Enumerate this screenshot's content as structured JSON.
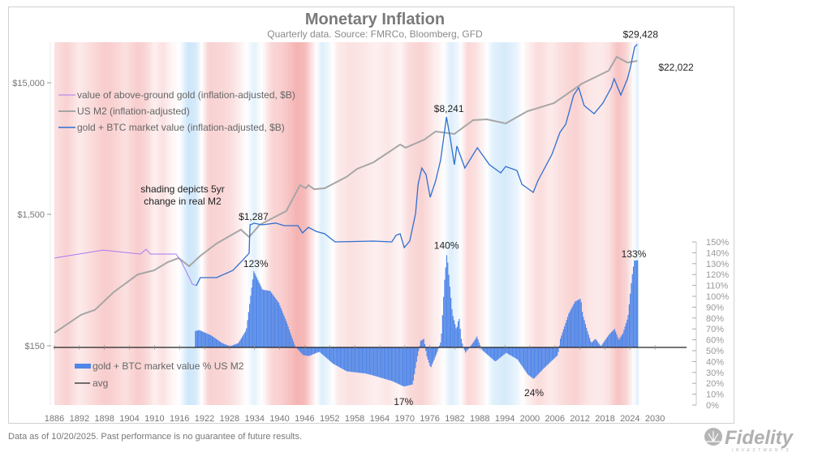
{
  "chart_data": {
    "type": "line",
    "title": "Monetary Inflation",
    "subtitle": "Quarterly data.  Source: FMRCo, Bloomberg, GFD",
    "annotation": [
      "shading depicts 5yr",
      "change in real M2"
    ],
    "x_ticks": [
      "1886",
      "1892",
      "1898",
      "1904",
      "1910",
      "1916",
      "1922",
      "1928",
      "1934",
      "1940",
      "1946",
      "1952",
      "1958",
      "1964",
      "1970",
      "1976",
      "1982",
      "1988",
      "1994",
      "2000",
      "2006",
      "2012",
      "2018",
      "2024",
      "2030"
    ],
    "xlim": [
      1886,
      2041
    ],
    "left_axis": {
      "scale": "log",
      "ticks": [
        {
          "value": 15000,
          "label": "$15,000"
        },
        {
          "value": 1500,
          "label": "$1,500"
        },
        {
          "value": 150,
          "label": "$150"
        }
      ],
      "ylim": [
        54,
        30500
      ]
    },
    "right_axis": {
      "ticks": [
        "0%",
        "10%",
        "20%",
        "30%",
        "40%",
        "50%",
        "60%",
        "70%",
        "80%",
        "90%",
        "100%",
        "110%",
        "120%",
        "130%",
        "140%",
        "150%"
      ],
      "ylim": [
        0,
        150
      ]
    },
    "colors": {
      "gold": "#a77bf0",
      "m2": "#a6a6a6",
      "gold_btc": "#2f6fd0",
      "bars": "#4f86e8",
      "avg": "#222222",
      "shade_pos": "#f29a9a",
      "shade_neg": "#a9d4f5"
    },
    "legend_top": [
      {
        "name": "value of above-ground gold (inflation-adjusted, $B)",
        "series": "gold"
      },
      {
        "name": "US M2 (inflation-adjusted)",
        "series": "m2"
      },
      {
        "name": "gold + BTC market value (inflation-adjusted, $B)",
        "series": "gold_btc"
      }
    ],
    "legend_bottom": [
      {
        "name": "gold + BTC market value % US M2",
        "series": "bars"
      },
      {
        "name": "avg",
        "series": "avg"
      }
    ],
    "series": {
      "gold": [
        [
          1886,
          697
        ],
        [
          1897.7,
          802
        ],
        [
          1906.6,
          748
        ],
        [
          1908,
          813
        ],
        [
          1909,
          748
        ],
        [
          1915.2,
          748
        ],
        [
          1916.4,
          658
        ],
        [
          1919.1,
          442
        ],
        [
          1920,
          430
        ]
      ],
      "m2": [
        [
          1886,
          188
        ],
        [
          1892.4,
          258
        ],
        [
          1895.7,
          281
        ],
        [
          1900.2,
          383
        ],
        [
          1906,
          523
        ],
        [
          1909.9,
          562
        ],
        [
          1913.2,
          649
        ],
        [
          1915.8,
          697
        ],
        [
          1918.3,
          604
        ],
        [
          1921,
          726
        ],
        [
          1924.9,
          899
        ],
        [
          1930.7,
          1146
        ],
        [
          1932.7,
          1007
        ],
        [
          1935.2,
          1247
        ],
        [
          1939.7,
          1479
        ],
        [
          1941.6,
          1588
        ],
        [
          1944.9,
          2500
        ],
        [
          1946.3,
          2366
        ],
        [
          1946.9,
          2500
        ],
        [
          1948.3,
          2328
        ],
        [
          1950.8,
          2366
        ],
        [
          1956,
          2884
        ],
        [
          1958.6,
          3327
        ],
        [
          1962.5,
          3724
        ],
        [
          1968.9,
          5093
        ],
        [
          1970.2,
          4808
        ],
        [
          1974.7,
          5546
        ],
        [
          1977.4,
          6397
        ],
        [
          1981.9,
          6124
        ],
        [
          1986.4,
          7798
        ],
        [
          1989.7,
          7907
        ],
        [
          1994.2,
          7362
        ],
        [
          1999.4,
          9120
        ],
        [
          2005.8,
          10520
        ],
        [
          2012.5,
          14790
        ],
        [
          2018.9,
          18570
        ],
        [
          2020.8,
          23650
        ],
        [
          2023.4,
          21380
        ],
        [
          2025.75,
          22022
        ]
      ],
      "gold_btc": [
        [
          1920,
          430
        ],
        [
          1921,
          495
        ],
        [
          1924.9,
          495
        ],
        [
          1928.8,
          562
        ],
        [
          1930.7,
          649
        ],
        [
          1932.7,
          759
        ],
        [
          1932.9,
          1247
        ],
        [
          1933.9,
          1283
        ],
        [
          1935.8,
          1247
        ],
        [
          1939.1,
          1287
        ],
        [
          1941.1,
          1230
        ],
        [
          1944.4,
          1230
        ],
        [
          1945.5,
          1081
        ],
        [
          1946.9,
          1194
        ],
        [
          1948.8,
          1112
        ],
        [
          1950.8,
          1067
        ],
        [
          1953.3,
          925
        ],
        [
          1962.5,
          938
        ],
        [
          1966.9,
          925
        ],
        [
          1967.9,
          1038
        ],
        [
          1968.9,
          1067
        ],
        [
          1969.9,
          838
        ],
        [
          1971.2,
          938
        ],
        [
          1972.6,
          1521
        ],
        [
          1973.2,
          2535
        ],
        [
          1974.1,
          3373
        ],
        [
          1975.1,
          3006
        ],
        [
          1976.1,
          2023
        ],
        [
          1977.4,
          2685
        ],
        [
          1978.6,
          3890
        ],
        [
          1980,
          8241
        ],
        [
          1980.9,
          5700
        ],
        [
          1981.9,
          3573
        ],
        [
          1982.5,
          4955
        ],
        [
          1984.4,
          3373
        ],
        [
          1987.4,
          4808
        ],
        [
          1990.3,
          3573
        ],
        [
          1993,
          3097
        ],
        [
          1994.2,
          3467
        ],
        [
          1996.9,
          3228
        ],
        [
          1998.1,
          2535
        ],
        [
          2000.8,
          2203
        ],
        [
          2001.9,
          2685
        ],
        [
          2005.3,
          4295
        ],
        [
          2007.2,
          6295
        ],
        [
          2008.6,
          7261
        ],
        [
          2010.5,
          12110
        ],
        [
          2011.7,
          13770
        ],
        [
          2013,
          10070
        ],
        [
          2015.4,
          8730
        ],
        [
          2017.5,
          10520
        ],
        [
          2019.5,
          13770
        ],
        [
          2020.2,
          16110
        ],
        [
          2021.8,
          12110
        ],
        [
          2023.4,
          16110
        ],
        [
          2024.1,
          19640
        ],
        [
          2025.1,
          28000
        ],
        [
          2025.75,
          29428
        ]
      ],
      "pct_of_m2": [
        [
          1919.7,
          68
        ],
        [
          1920.6,
          69
        ],
        [
          1923.5,
          64
        ],
        [
          1926.1,
          57
        ],
        [
          1928,
          54
        ],
        [
          1930,
          57
        ],
        [
          1931.9,
          69
        ],
        [
          1932.9,
          99
        ],
        [
          1933.7,
          123
        ],
        [
          1935.8,
          106
        ],
        [
          1937.6,
          105
        ],
        [
          1939.7,
          94
        ],
        [
          1941.6,
          76
        ],
        [
          1943.6,
          54
        ],
        [
          1945.5,
          46
        ],
        [
          1946.9,
          45
        ],
        [
          1949.4,
          49
        ],
        [
          1952.7,
          38
        ],
        [
          1956,
          31
        ],
        [
          1960.5,
          29
        ],
        [
          1962.5,
          27
        ],
        [
          1966.9,
          22
        ],
        [
          1969.7,
          17
        ],
        [
          1971.8,
          19
        ],
        [
          1972.8,
          42
        ],
        [
          1973.7,
          59
        ],
        [
          1974.5,
          61
        ],
        [
          1975.1,
          46
        ],
        [
          1976.1,
          34
        ],
        [
          1977.6,
          48
        ],
        [
          1978.6,
          59
        ],
        [
          1979.4,
          113
        ],
        [
          1980,
          140
        ],
        [
          1980.6,
          113
        ],
        [
          1981.3,
          84
        ],
        [
          1982.3,
          69
        ],
        [
          1982.9,
          81
        ],
        [
          1983.5,
          59
        ],
        [
          1984.4,
          48
        ],
        [
          1986.2,
          57
        ],
        [
          1987.2,
          63
        ],
        [
          1988.3,
          51
        ],
        [
          1991.6,
          40
        ],
        [
          1994.2,
          48
        ],
        [
          1996.9,
          42
        ],
        [
          1999.4,
          28
        ],
        [
          2000.8,
          24
        ],
        [
          2003.3,
          34
        ],
        [
          2006.6,
          46
        ],
        [
          2007.2,
          61
        ],
        [
          2009.2,
          84
        ],
        [
          2010.7,
          95
        ],
        [
          2012.1,
          98
        ],
        [
          2012.5,
          84
        ],
        [
          2013.6,
          69
        ],
        [
          2014.6,
          57
        ],
        [
          2015.6,
          61
        ],
        [
          2016.9,
          54
        ],
        [
          2018.9,
          65
        ],
        [
          2020.2,
          70
        ],
        [
          2021.2,
          60
        ],
        [
          2022.2,
          66
        ],
        [
          2023.4,
          81
        ],
        [
          2024.3,
          116
        ],
        [
          2024.9,
          133
        ],
        [
          2025.75,
          133
        ]
      ],
      "avg_pct": 53,
      "shading_5yr_real_m2_change": [
        [
          1886,
          0.3
        ],
        [
          1889,
          0.45
        ],
        [
          1892,
          0.2
        ],
        [
          1895,
          0.35
        ],
        [
          1898,
          0.5
        ],
        [
          1900,
          0.45
        ],
        [
          1903,
          0.3
        ],
        [
          1906,
          0.5
        ],
        [
          1908,
          0.4
        ],
        [
          1910,
          0.15
        ],
        [
          1912,
          0.3
        ],
        [
          1914,
          0.1
        ],
        [
          1916,
          0.0
        ],
        [
          1918,
          -0.35
        ],
        [
          1920,
          -0.3
        ],
        [
          1921.5,
          0.05
        ],
        [
          1923,
          0.45
        ],
        [
          1926,
          0.4
        ],
        [
          1928,
          0.35
        ],
        [
          1930,
          0.2
        ],
        [
          1932,
          0.0
        ],
        [
          1934,
          -0.2
        ],
        [
          1936,
          0.05
        ],
        [
          1938,
          0.4
        ],
        [
          1941,
          0.5
        ],
        [
          1944,
          0.75
        ],
        [
          1946,
          0.7
        ],
        [
          1948,
          0.2
        ],
        [
          1950,
          -0.25
        ],
        [
          1952,
          -0.1
        ],
        [
          1954,
          0.2
        ],
        [
          1957,
          0.3
        ],
        [
          1960,
          0.25
        ],
        [
          1963,
          0.15
        ],
        [
          1966,
          0.25
        ],
        [
          1969,
          0.1
        ],
        [
          1971,
          0.35
        ],
        [
          1974,
          0.45
        ],
        [
          1977,
          0.2
        ],
        [
          1979,
          0.05
        ],
        [
          1981,
          -0.25
        ],
        [
          1983,
          -0.1
        ],
        [
          1985,
          0.4
        ],
        [
          1987,
          0.3
        ],
        [
          1989,
          0.1
        ],
        [
          1991,
          -0.2
        ],
        [
          1994,
          -0.3
        ],
        [
          1997,
          -0.15
        ],
        [
          1999,
          0.1
        ],
        [
          2002,
          0.35
        ],
        [
          2005,
          0.2
        ],
        [
          2008,
          0.35
        ],
        [
          2011,
          0.45
        ],
        [
          2014,
          0.25
        ],
        [
          2017,
          0.2
        ],
        [
          2019,
          0.3
        ],
        [
          2021,
          0.6
        ],
        [
          2023,
          0.45
        ],
        [
          2024.5,
          0.1
        ],
        [
          2025.75,
          -0.2
        ]
      ]
    },
    "data_labels": [
      {
        "text": "$29,428",
        "series": "gold_btc",
        "x": 2025.75,
        "y": 29428
      },
      {
        "text": "$22,022",
        "series": "m2",
        "x": 2025.75,
        "y": 22022
      },
      {
        "text": "$8,241",
        "series": "gold_btc",
        "x": 1980,
        "y": 8241
      },
      {
        "text": "$1,287",
        "series": "gold_btc",
        "x": 1939,
        "y": 1287
      },
      {
        "text": "123%",
        "series": "pct_of_m2",
        "x": 1933.7,
        "y": 123
      },
      {
        "text": "140%",
        "series": "pct_of_m2",
        "x": 1980,
        "y": 140
      },
      {
        "text": "133%",
        "series": "pct_of_m2",
        "x": 2024.9,
        "y": 133
      },
      {
        "text": "17%",
        "series": "pct_of_m2",
        "x": 1969.7,
        "y": 17
      },
      {
        "text": "24%",
        "series": "pct_of_m2",
        "x": 2000.8,
        "y": 24
      }
    ]
  },
  "footer": {
    "disclaimer": "Data as of 10/20/2025. Past performance is no guarantee of future results."
  },
  "logo": {
    "name": "Fidelity",
    "sub": "INVESTMENTS"
  }
}
